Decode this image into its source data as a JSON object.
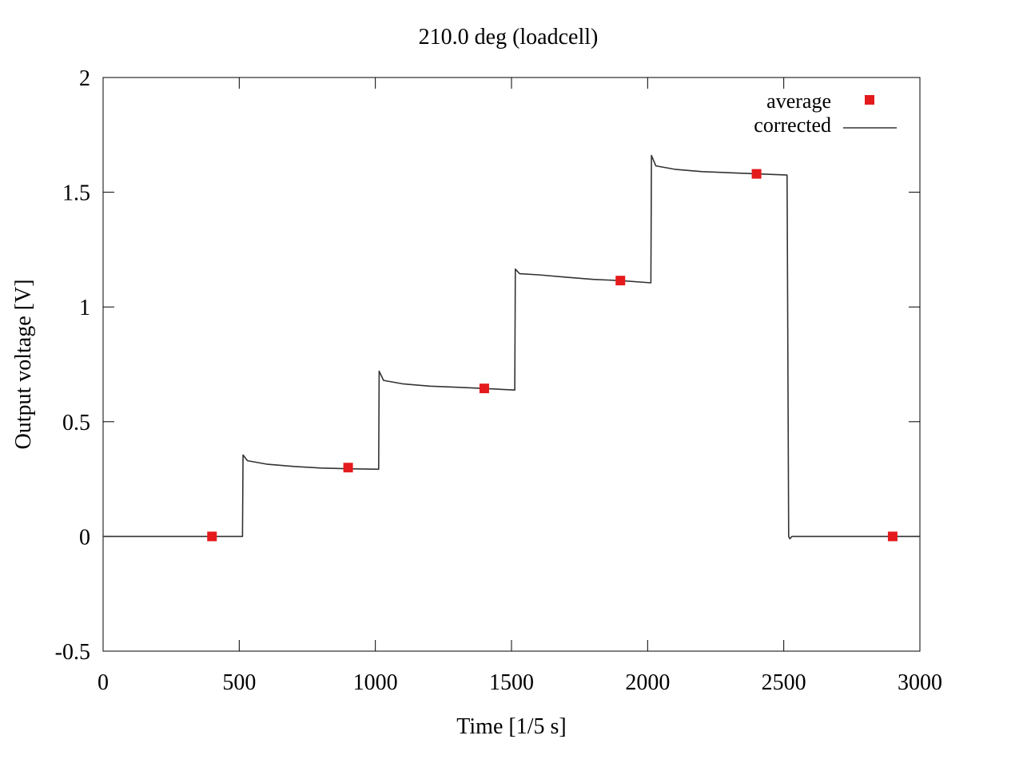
{
  "chart_data": {
    "type": "line",
    "title": "210.0 deg (loadcell)",
    "xlabel": "Time [1/5 s]",
    "ylabel": "Output voltage [V]",
    "xlim": [
      0,
      3000
    ],
    "ylim": [
      -0.5,
      2
    ],
    "x_ticks": [
      0,
      500,
      1000,
      1500,
      2000,
      2500,
      3000
    ],
    "x_tick_labels": [
      "0",
      "500",
      "1000",
      "1500",
      "2000",
      "2500",
      "3000"
    ],
    "y_ticks": [
      -0.5,
      0,
      0.5,
      1,
      1.5,
      2
    ],
    "y_tick_labels": [
      "-0.5",
      "0",
      "0.5",
      "1",
      "1.5",
      "2"
    ],
    "grid": false,
    "legend": {
      "position": "top-right",
      "entries": [
        {
          "label": "average",
          "symbol": "square"
        },
        {
          "label": "corrected",
          "symbol": "line"
        }
      ]
    },
    "series": [
      {
        "name": "average",
        "type": "scatter",
        "color": "#e41a1c",
        "points": [
          {
            "x": 400,
            "y": 0.0
          },
          {
            "x": 900,
            "y": 0.3
          },
          {
            "x": 1400,
            "y": 0.645
          },
          {
            "x": 1900,
            "y": 1.115
          },
          {
            "x": 2400,
            "y": 1.58
          },
          {
            "x": 2900,
            "y": 0.0
          }
        ]
      },
      {
        "name": "corrected",
        "type": "line",
        "color": "#333333",
        "points": [
          {
            "x": 0,
            "y": 0.0
          },
          {
            "x": 512,
            "y": 0.0
          },
          {
            "x": 514,
            "y": 0.355
          },
          {
            "x": 530,
            "y": 0.33
          },
          {
            "x": 600,
            "y": 0.315
          },
          {
            "x": 700,
            "y": 0.305
          },
          {
            "x": 800,
            "y": 0.298
          },
          {
            "x": 900,
            "y": 0.295
          },
          {
            "x": 1012,
            "y": 0.293
          },
          {
            "x": 1014,
            "y": 0.72
          },
          {
            "x": 1030,
            "y": 0.68
          },
          {
            "x": 1100,
            "y": 0.665
          },
          {
            "x": 1200,
            "y": 0.655
          },
          {
            "x": 1300,
            "y": 0.65
          },
          {
            "x": 1400,
            "y": 0.645
          },
          {
            "x": 1512,
            "y": 0.638
          },
          {
            "x": 1514,
            "y": 1.165
          },
          {
            "x": 1530,
            "y": 1.145
          },
          {
            "x": 1600,
            "y": 1.14
          },
          {
            "x": 1700,
            "y": 1.13
          },
          {
            "x": 1800,
            "y": 1.12
          },
          {
            "x": 1900,
            "y": 1.115
          },
          {
            "x": 2012,
            "y": 1.105
          },
          {
            "x": 2014,
            "y": 1.66
          },
          {
            "x": 2030,
            "y": 1.615
          },
          {
            "x": 2100,
            "y": 1.6
          },
          {
            "x": 2200,
            "y": 1.59
          },
          {
            "x": 2300,
            "y": 1.585
          },
          {
            "x": 2400,
            "y": 1.58
          },
          {
            "x": 2512,
            "y": 1.575
          },
          {
            "x": 2518,
            "y": 0.0
          },
          {
            "x": 2522,
            "y": -0.01
          },
          {
            "x": 2530,
            "y": 0.0
          },
          {
            "x": 3000,
            "y": 0.0
          }
        ]
      }
    ]
  }
}
